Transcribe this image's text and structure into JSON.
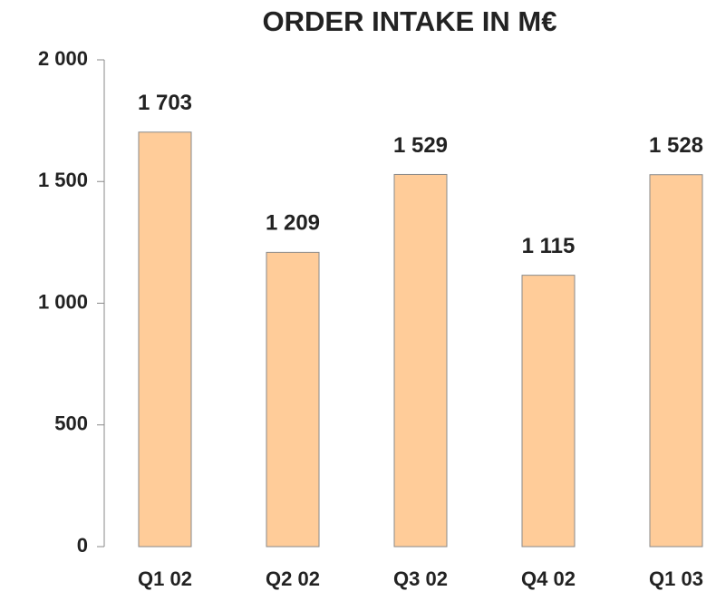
{
  "chart_data": {
    "type": "bar",
    "title": "ORDER INTAKE IN M€",
    "categories": [
      "Q1 02",
      "Q2 02",
      "Q3 02",
      "Q4 02",
      "Q1 03"
    ],
    "values": [
      1703,
      1209,
      1529,
      1115,
      1528
    ],
    "value_labels": [
      "1 703",
      "1 209",
      "1 529",
      "1 115",
      "1 528"
    ],
    "color": "#ffcc99",
    "ylim": [
      0,
      2000
    ],
    "yticks": [
      0,
      500,
      {
        "value": 1000,
        "label": "1 000"
      },
      {
        "value": 1500,
        "label": "1 500"
      },
      {
        "value": 2000,
        "label": "2 000"
      }
    ],
    "grid": false
  }
}
